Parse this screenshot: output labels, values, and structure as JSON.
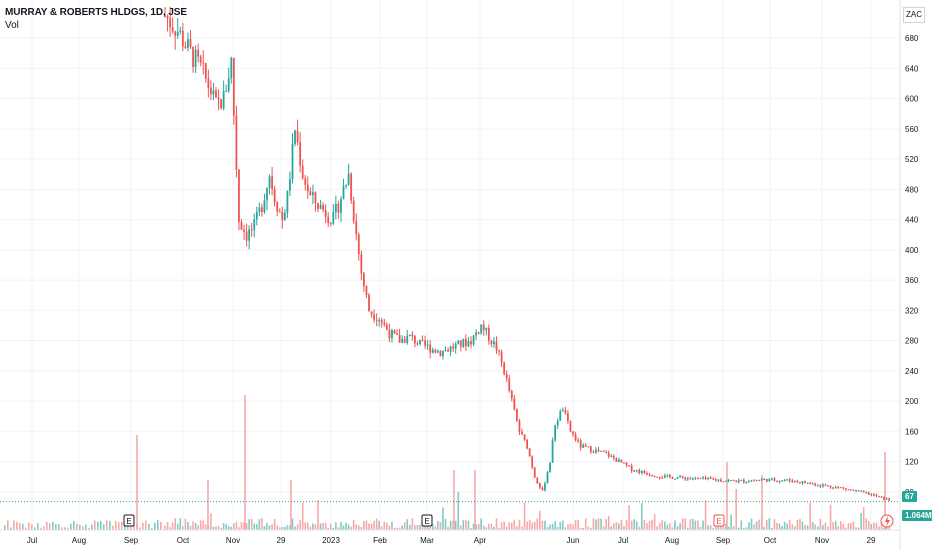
{
  "legend": {
    "title": "MURRAY & ROBERTS HLDGS, 1D, JSE",
    "vol_label": "Vol"
  },
  "currency": "ZAC",
  "last_price_label": "67",
  "last_volume_label": "1.064M",
  "earnings_marker": "E",
  "colors": {
    "up": "#26a69a",
    "down": "#ef5350",
    "up_vol": "#80cbc4",
    "down_vol": "#f7a9a7",
    "grid": "#f0f3fa"
  },
  "chart_data": {
    "type": "candlestick",
    "title": "MURRAY & ROBERTS HLDGS, 1D, JSE",
    "ylim": [
      40,
      720
    ],
    "y_ticks": [
      80,
      120,
      160,
      200,
      240,
      280,
      320,
      360,
      400,
      440,
      480,
      520,
      560,
      600,
      640,
      680
    ],
    "x_ticks": [
      "Jul",
      "Aug",
      "Sep",
      "Oct",
      "Nov",
      "29",
      "2023",
      "Feb",
      "Mar",
      "Apr",
      "Jun",
      "Jul",
      "Aug",
      "Sep",
      "Oct",
      "Nov",
      "29"
    ],
    "last_price": 67,
    "last_volume": "1.064M",
    "series_path": [
      [
        0,
        710
      ],
      [
        5,
        690
      ],
      [
        10,
        660
      ],
      [
        14,
        640
      ],
      [
        18,
        610
      ],
      [
        20,
        590
      ],
      [
        23,
        600
      ],
      [
        26,
        650
      ],
      [
        29,
        440
      ],
      [
        32,
        420
      ],
      [
        35,
        430
      ],
      [
        38,
        460
      ],
      [
        41,
        500
      ],
      [
        43,
        470
      ],
      [
        46,
        440
      ],
      [
        48,
        470
      ],
      [
        51,
        560
      ],
      [
        54,
        500
      ],
      [
        57,
        470
      ],
      [
        60,
        460
      ],
      [
        63,
        450
      ],
      [
        66,
        440
      ],
      [
        69,
        470
      ],
      [
        72,
        500
      ],
      [
        75,
        420
      ],
      [
        77,
        370
      ],
      [
        80,
        320
      ],
      [
        84,
        310
      ],
      [
        88,
        290
      ],
      [
        92,
        280
      ],
      [
        96,
        285
      ],
      [
        100,
        275
      ],
      [
        104,
        270
      ],
      [
        108,
        265
      ],
      [
        112,
        270
      ],
      [
        116,
        275
      ],
      [
        120,
        280
      ],
      [
        124,
        300
      ],
      [
        126,
        290
      ],
      [
        130,
        270
      ],
      [
        133,
        240
      ],
      [
        136,
        200
      ],
      [
        139,
        160
      ],
      [
        142,
        140
      ],
      [
        145,
        100
      ],
      [
        148,
        80
      ],
      [
        151,
        120
      ],
      [
        153,
        170
      ],
      [
        156,
        190
      ],
      [
        159,
        160
      ],
      [
        163,
        140
      ],
      [
        168,
        135
      ],
      [
        173,
        130
      ],
      [
        178,
        120
      ],
      [
        183,
        110
      ],
      [
        188,
        105
      ],
      [
        195,
        100
      ],
      [
        205,
        98
      ],
      [
        215,
        96
      ],
      [
        225,
        94
      ],
      [
        235,
        96
      ],
      [
        245,
        95
      ],
      [
        255,
        90
      ],
      [
        265,
        85
      ],
      [
        275,
        78
      ],
      [
        283,
        70
      ],
      [
        288,
        65
      ],
      [
        292,
        70
      ],
      [
        298,
        72
      ],
      [
        305,
        78
      ],
      [
        312,
        76
      ],
      [
        320,
        74
      ],
      [
        330,
        72
      ],
      [
        340,
        70
      ],
      [
        348,
        67
      ]
    ],
    "earnings_days": [
      50,
      142,
      282
    ]
  }
}
